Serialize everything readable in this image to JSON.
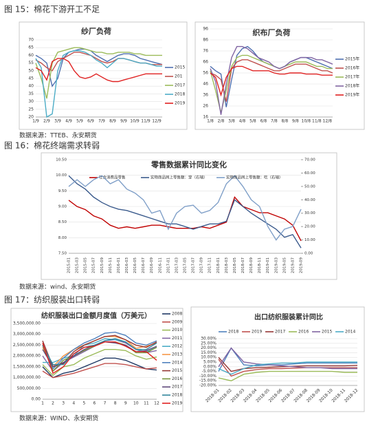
{
  "headers": [
    "图 15：棉花下游开工不足",
    "图 16：棉花终端需求转弱",
    "图 17：纺织服装出口转弱"
  ],
  "sources": [
    "数据来源：TTEB、永安期货",
    "数据来源：wind、永安期货",
    "数据来源：WIND、永安期货"
  ],
  "chart_data": [
    {
      "type": "line",
      "title": "纱厂负荷",
      "categories": [
        "1/9",
        null,
        "2/9",
        null,
        "3/9",
        null,
        "4/9",
        null,
        "5/9",
        null,
        "6/9",
        null,
        "7/9",
        null,
        "8/9",
        null,
        "9/9",
        null,
        "10/9",
        null,
        "11/9",
        null,
        "12/9",
        null
      ],
      "ylim": [
        20,
        70
      ],
      "yticks": [
        20,
        25,
        30,
        35,
        40,
        45,
        50,
        55,
        60,
        65,
        70
      ],
      "series": [
        {
          "name": "2015",
          "color": "#4f6fb0",
          "values": [
            60,
            58,
            55,
            40,
            45,
            58,
            62,
            63,
            64,
            64,
            63,
            60,
            58,
            56,
            58,
            60,
            61,
            61,
            60,
            58,
            57,
            56,
            55,
            54
          ]
        },
        {
          "name": "201",
          "color": "#c0504d",
          "values": [
            57,
            55,
            52,
            50,
            56,
            58,
            60,
            62,
            62,
            61,
            60,
            58,
            56,
            55,
            56,
            58,
            58,
            57,
            56,
            55,
            55,
            54,
            54,
            54
          ]
        },
        {
          "name": "2017",
          "color": "#9bbb59",
          "values": [
            55,
            45,
            32,
            55,
            62,
            63,
            64,
            65,
            65,
            64,
            63,
            62,
            62,
            61,
            61,
            62,
            62,
            62,
            61,
            61,
            60,
            60,
            60,
            60
          ]
        },
        {
          "name": "2018",
          "color": "#4bacc6",
          "values": [
            58,
            52,
            20,
            22,
            50,
            60,
            62,
            63,
            63,
            62,
            60,
            57,
            55,
            52,
            55,
            58,
            58,
            57,
            56,
            55,
            55,
            54,
            53,
            53
          ]
        },
        {
          "name": "2019",
          "color": "#e02020",
          "values": [
            52,
            50,
            44,
            56,
            58,
            58,
            56,
            50,
            46,
            45,
            46,
            48,
            46,
            44,
            43,
            43,
            44,
            45,
            46,
            47,
            48,
            48,
            48,
            48
          ]
        }
      ]
    },
    {
      "type": "line",
      "title": "织布厂负荷",
      "categories": [
        "1/8",
        null,
        "2/8",
        null,
        "3/8",
        null,
        "4/8",
        null,
        "5/8",
        null,
        "6/8",
        null,
        "7/8",
        null,
        "8/8",
        null,
        "9/8",
        null,
        "10/8",
        null,
        "11/8",
        null,
        "12/8",
        null
      ],
      "ylim": [
        16,
        96
      ],
      "yticks": [
        16,
        26,
        36,
        46,
        56,
        66,
        76,
        86,
        96
      ],
      "series": [
        {
          "name": "2015年",
          "color": "#4f6fb0",
          "values": [
            62,
            58,
            55,
            25,
            50,
            72,
            78,
            80,
            76,
            70,
            66,
            64,
            62,
            60,
            62,
            66,
            68,
            70,
            70,
            68,
            66,
            64,
            62,
            60
          ]
        },
        {
          "name": "2016年",
          "color": "#c0504d",
          "values": [
            56,
            54,
            50,
            30,
            60,
            66,
            68,
            68,
            66,
            64,
            62,
            60,
            58,
            58,
            60,
            62,
            64,
            64,
            64,
            62,
            60,
            58,
            58,
            56
          ]
        },
        {
          "name": "2017年",
          "color": "#9bbb59",
          "values": [
            58,
            40,
            20,
            40,
            62,
            70,
            72,
            72,
            70,
            68,
            66,
            64,
            62,
            60,
            62,
            64,
            66,
            66,
            66,
            64,
            62,
            62,
            60,
            60
          ]
        },
        {
          "name": "2018年",
          "color": "#8064a2",
          "values": [
            60,
            48,
            18,
            46,
            70,
            80,
            80,
            78,
            74,
            70,
            68,
            66,
            62,
            60,
            62,
            66,
            68,
            70,
            70,
            70,
            68,
            68,
            66,
            64
          ]
        },
        {
          "name": "2019年",
          "color": "#e02020",
          "values": [
            56,
            52,
            36,
            52,
            60,
            62,
            62,
            60,
            58,
            58,
            58,
            58,
            56,
            55,
            55,
            56,
            56,
            56,
            55,
            55,
            55,
            54,
            54,
            54
          ]
        }
      ]
    },
    {
      "type": "line",
      "title": "零售数据累计同比变化",
      "categories": [
        "2015-01",
        "2015-03",
        "2015-05",
        "2015-07",
        "2015-09",
        "2015-11",
        "2016-01",
        "2016-03",
        "2016-05",
        "2016-07",
        "2016-09",
        "2016-11",
        "2017-01",
        "2017-03",
        "2017-05",
        "2017-07",
        "2017-09",
        "2017-11",
        "2018-01",
        "2018-03",
        "2018-05",
        "2018-07",
        "2018-09",
        "2018-11",
        "2019-01",
        "2019-03",
        "2019-05",
        "2019-07",
        "2019-09"
      ],
      "ylim": [
        7.5,
        10.5
      ],
      "yticks": [
        {
          "value": 7.5,
          "label": "7.50"
        },
        {
          "value": 8,
          "label": "8.00"
        },
        {
          "value": 8.5,
          "label": "8.50"
        },
        {
          "value": 9,
          "label": "9.00"
        },
        {
          "value": 9.5,
          "label": "9.50"
        },
        {
          "value": 10,
          "label": "10.00"
        },
        {
          "value": 10.5,
          "label": "10.50"
        }
      ],
      "y2lim": [
        0,
        70
      ],
      "y2ticks": [
        {
          "value": 0,
          "label": "0.00"
        },
        {
          "value": 10,
          "label": "10.00"
        },
        {
          "value": 20,
          "label": "20.00"
        },
        {
          "value": 30,
          "label": "30.00"
        },
        {
          "value": 40,
          "label": "40.00"
        },
        {
          "value": 50,
          "label": "50.00"
        },
        {
          "value": 60,
          "label": "60.00"
        },
        {
          "value": 70,
          "label": "70.00"
        }
      ],
      "series": [
        {
          "name": "社会消费品零售",
          "color": "#c00000",
          "values": [
            9.2,
            9.0,
            8.9,
            8.7,
            8.6,
            8.4,
            8.3,
            8.35,
            8.3,
            8.35,
            8.4,
            8.4,
            8.35,
            8.3,
            8.3,
            8.3,
            8.35,
            8.3,
            8.4,
            8.5,
            9.3,
            9.0,
            8.9,
            8.8,
            8.8,
            8.7,
            8.6,
            8.4,
            7.9
          ]
        },
        {
          "name": "实物商品网上零售额：穿（右轴）",
          "color": "#3a5a8c",
          "axis": "y2",
          "values": [
            58,
            52,
            48,
            42,
            38,
            35,
            33,
            32,
            30,
            28,
            26,
            24,
            22,
            22,
            20,
            18,
            20,
            22,
            22,
            24,
            40,
            35,
            30,
            26,
            22,
            18,
            12,
            14,
            4
          ]
        },
        {
          "name": "实物商品网上零售额：吃（右轴）",
          "color": "#7f9fc8",
          "axis": "y2",
          "values": [
            50,
            55,
            50,
            55,
            58,
            52,
            55,
            48,
            45,
            40,
            30,
            32,
            18,
            30,
            35,
            36,
            30,
            32,
            38,
            52,
            58,
            50,
            40,
            35,
            20,
            10,
            18,
            20,
            33
          ]
        }
      ]
    },
    {
      "type": "line",
      "title": "纺织服装出口金额月度值（万美元）",
      "categories": [
        "1",
        "2",
        "3",
        "4",
        "5",
        "6",
        "7",
        "8",
        "9",
        "10",
        "11",
        "12"
      ],
      "ylim": [
        0,
        3500000
      ],
      "yticks": [
        {
          "value": 0,
          "label": "0.00"
        },
        {
          "value": 500000,
          "label": "500,000.00"
        },
        {
          "value": 1000000,
          "label": "1,000,000.00"
        },
        {
          "value": 1500000,
          "label": "1,500,000.00"
        },
        {
          "value": 2000000,
          "label": "2,000,000.00"
        },
        {
          "value": 2500000,
          "label": "2,500,000.00"
        },
        {
          "value": 3000000,
          "label": "3,000,000.00"
        },
        {
          "value": 3500000,
          "label": "3,500,000.00"
        }
      ],
      "series": [
        {
          "name": "2008",
          "color": "#1f3864",
          "values": [
            1500000,
            1000000,
            1200000,
            1300000,
            1500000,
            1700000,
            1900000,
            1900000,
            1800000,
            1600000,
            1400000,
            1350000
          ]
        },
        {
          "name": "2009",
          "color": "#c0504d",
          "values": [
            1300000,
            1000000,
            1100000,
            1200000,
            1350000,
            1500000,
            1650000,
            1650000,
            1600000,
            1500000,
            1400000,
            1450000
          ]
        },
        {
          "name": "2010",
          "color": "#9bbb59",
          "values": [
            1600000,
            1100000,
            1500000,
            1600000,
            1900000,
            2100000,
            2300000,
            2300000,
            2250000,
            2000000,
            1850000,
            1950000
          ]
        },
        {
          "name": "2011",
          "color": "#8064a2",
          "values": [
            2000000,
            1300000,
            1700000,
            1950000,
            2200000,
            2450000,
            2700000,
            2750000,
            2600000,
            2300000,
            2150000,
            2250000
          ]
        },
        {
          "name": "2012",
          "color": "#4bacc6",
          "values": [
            1700000,
            1700000,
            1900000,
            2000000,
            2500000,
            2600000,
            2800000,
            2750000,
            2650000,
            2300000,
            2200000,
            2400000
          ]
        },
        {
          "name": "2013",
          "color": "#f79646",
          "values": [
            2400000,
            1500000,
            2000000,
            2300000,
            2500000,
            2700000,
            2900000,
            2900000,
            2750000,
            2350000,
            2450000,
            2600000
          ]
        },
        {
          "name": "2014",
          "color": "#4f81bd",
          "values": [
            2500000,
            1400000,
            1900000,
            2300000,
            2600000,
            2800000,
            3050000,
            3100000,
            2950000,
            2600000,
            2500000,
            2700000
          ]
        },
        {
          "name": "2015",
          "color": "#943634",
          "values": [
            2700000,
            1500000,
            1650000,
            2200000,
            2500000,
            2700000,
            2900000,
            2950000,
            2750000,
            2500000,
            2400000,
            2650000
          ]
        },
        {
          "name": "2016",
          "color": "#77933c",
          "values": [
            2500000,
            1300000,
            1800000,
            2000000,
            2250000,
            2450000,
            2650000,
            2650000,
            2500000,
            2150000,
            2150000,
            2400000
          ]
        },
        {
          "name": "2017",
          "color": "#604a7b",
          "values": [
            2300000,
            1500000,
            1700000,
            2000000,
            2300000,
            2500000,
            2650000,
            2600000,
            2500000,
            2200000,
            2250000,
            2450000
          ]
        },
        {
          "name": "2018",
          "color": "#31859c",
          "values": [
            2500000,
            1600000,
            1600000,
            2100000,
            2400000,
            2500000,
            2700000,
            2800000,
            2650000,
            2300000,
            2300000,
            2600000
          ]
        },
        {
          "name": "2019",
          "color": "#e02020",
          "values": [
            2600000,
            1200000,
            1500000,
            2100000,
            2400000,
            2450000,
            2650000,
            2650000,
            2450000,
            2200000,
            2200000,
            1800000
          ]
        }
      ]
    },
    {
      "type": "line",
      "title": "出口纺织服装累计同比",
      "categories": [
        "2018-01",
        "2018-02",
        "2018-03",
        "2018-04",
        "2018-05",
        "2018-06",
        "2018-07",
        "2018-08",
        "2018-09",
        "2018-10",
        "2018-11",
        "2018-12"
      ],
      "ylim": [
        -20,
        30
      ],
      "yticks": [
        {
          "value": -20,
          "label": "-20.00%"
        },
        {
          "value": -15,
          "label": "-15.00%"
        },
        {
          "value": -10,
          "label": "-10.00%"
        },
        {
          "value": -5,
          "label": "-5.00%"
        },
        {
          "value": 0,
          "label": "0.00%"
        },
        {
          "value": 5,
          "label": "5.00%"
        },
        {
          "value": 10,
          "label": "10.00%"
        },
        {
          "value": 15,
          "label": "15.00%"
        },
        {
          "value": 20,
          "label": "20.00%"
        },
        {
          "value": 25,
          "label": "25.00%"
        },
        {
          "value": 30,
          "label": "30.00%"
        }
      ],
      "series": [
        {
          "name": "2018",
          "color": "#4f81bd",
          "values": [
            -5,
            20,
            2,
            1,
            2,
            2,
            3,
            4,
            4,
            4,
            4,
            4
          ]
        },
        {
          "name": "2019",
          "color": "#c0504d",
          "values": [
            8,
            -10,
            -5,
            -3,
            -2,
            -2,
            -1.5,
            -1,
            -1,
            -1,
            -1,
            -1
          ]
        },
        {
          "name": "2017",
          "color": "#943634",
          "values": [
            10,
            -5,
            -2,
            -1,
            -0.5,
            0,
            0.5,
            1,
            1,
            1,
            1,
            1.5
          ]
        },
        {
          "name": "2016",
          "color": "#9bbb59",
          "values": [
            -12,
            -15,
            -8,
            -6,
            -5,
            -5,
            -5,
            -5,
            -5,
            -5,
            -6,
            -6
          ]
        },
        {
          "name": "2015",
          "color": "#8064a2",
          "values": [
            0,
            20,
            5,
            3,
            2,
            1,
            0,
            -1,
            -1,
            -2,
            -2,
            -2
          ]
        },
        {
          "name": "2014",
          "color": "#4bacc6",
          "values": [
            -2,
            -8,
            -2,
            2,
            3,
            4,
            4,
            5,
            5,
            5,
            5,
            5
          ]
        }
      ]
    }
  ]
}
